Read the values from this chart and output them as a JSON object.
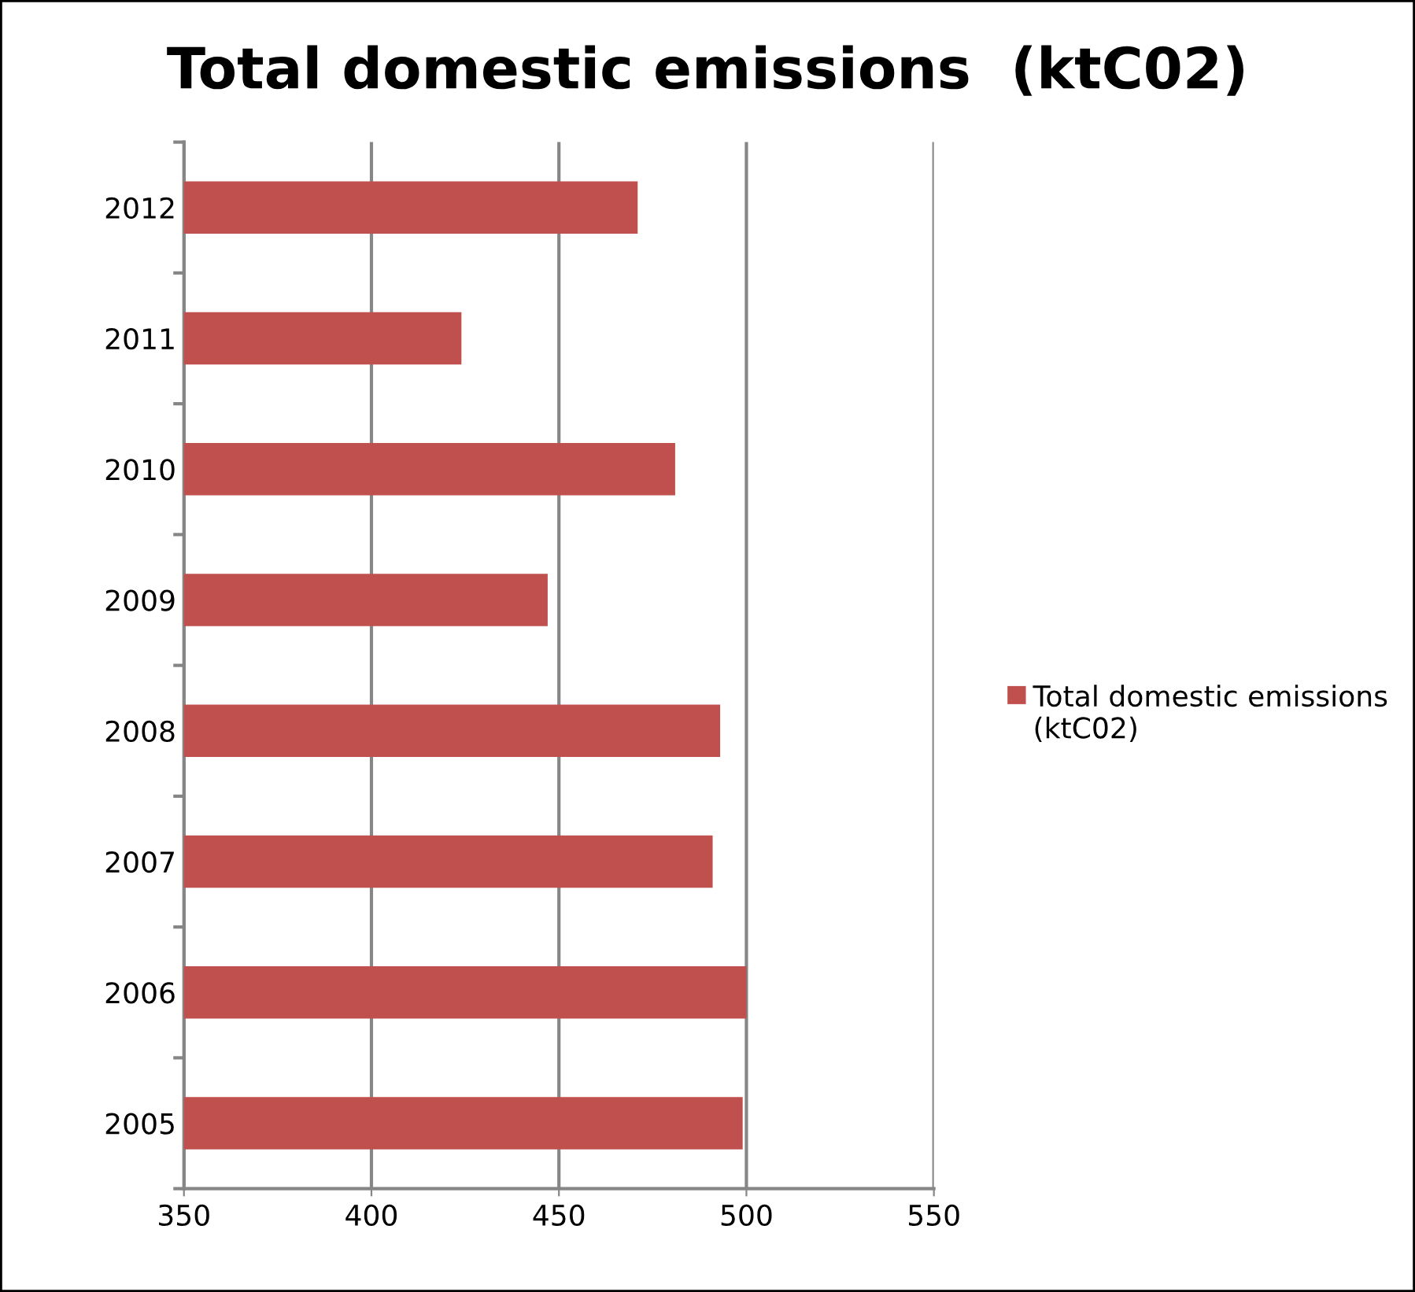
{
  "chart_data": {
    "type": "bar",
    "orientation": "horizontal",
    "title": "Total domestic emissions  (ktC02)",
    "categories": [
      "2012",
      "2011",
      "2010",
      "2009",
      "2008",
      "2007",
      "2006",
      "2005"
    ],
    "series": [
      {
        "name": "Total domestic emissions  (ktC02)",
        "color": "#c0504d",
        "values": [
          471,
          424,
          481,
          447,
          493,
          491,
          500,
          499
        ]
      }
    ],
    "xlim": [
      350,
      550
    ],
    "xticks": [
      350,
      400,
      450,
      500,
      550
    ],
    "grid": "x",
    "legend": "right"
  }
}
